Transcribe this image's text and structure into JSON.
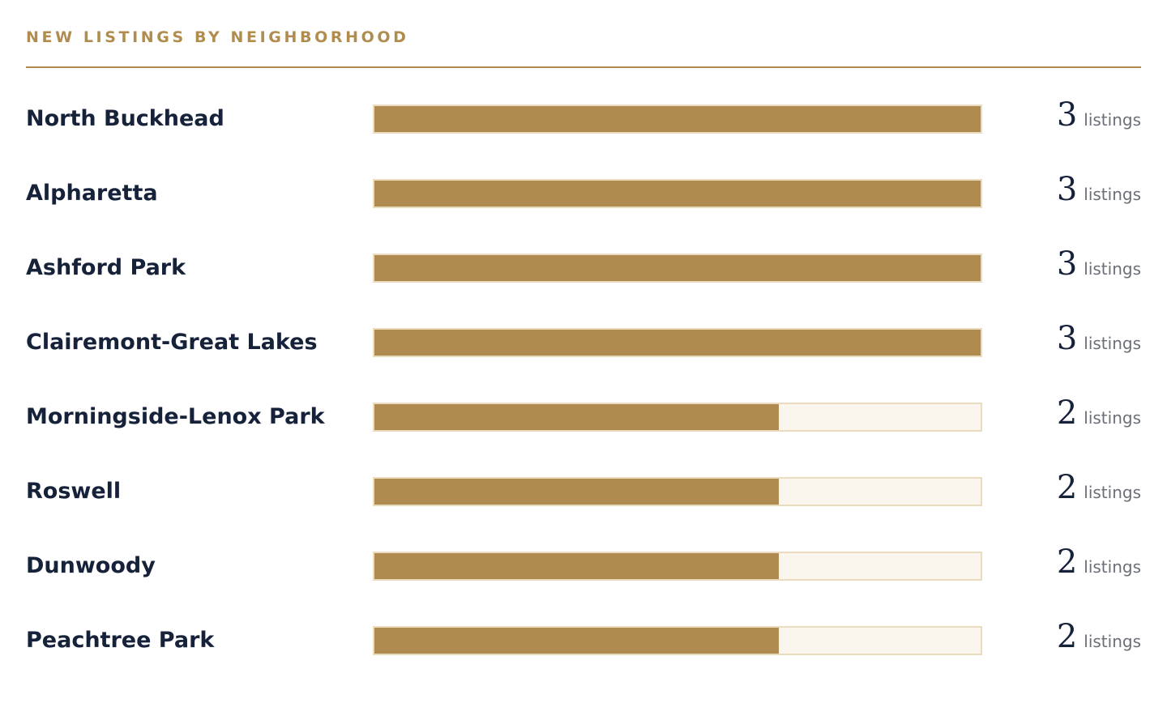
{
  "colors": {
    "accent": "#b08d4f",
    "bar_fill": "#b08b4f",
    "bar_track": "#faf6ee",
    "bar_border": "#ecdcbf",
    "label_text": "#16213a",
    "unit_text": "#6b6f78"
  },
  "chart_data": {
    "type": "bar",
    "orientation": "horizontal",
    "title": "NEW LISTINGS BY NEIGHBORHOOD",
    "value_unit": "listings",
    "xlim": [
      0,
      3
    ],
    "categories": [
      "North Buckhead",
      "Alpharetta",
      "Ashford Park",
      "Clairemont-Great Lakes",
      "Morningside-Lenox Park",
      "Roswell",
      "Dunwoody",
      "Peachtree Park"
    ],
    "values": [
      3,
      3,
      3,
      3,
      2,
      2,
      2,
      2
    ],
    "grid": false,
    "legend": "none"
  }
}
